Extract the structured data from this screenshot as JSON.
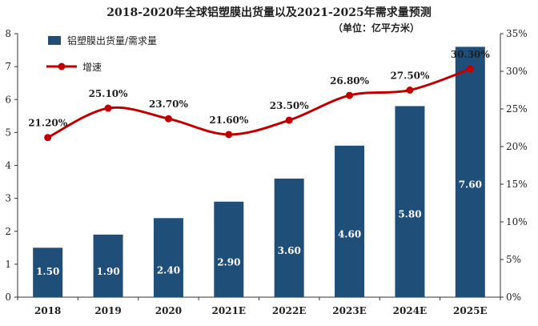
{
  "chart_data": {
    "type": "bar",
    "title": "2018-2020年全球铝塑膜出货量以及2021-2025年需求量预测",
    "subtitle": "（单位：亿平方米）",
    "categories": [
      "2018",
      "2019",
      "2020",
      "2021E",
      "2022E",
      "2023E",
      "2024E",
      "2025E"
    ],
    "series": [
      {
        "name": "铝塑膜出货量/需求量",
        "type": "bar",
        "axis": "left",
        "color": "#1f4e79",
        "values": [
          1.5,
          1.9,
          2.4,
          2.9,
          3.6,
          4.6,
          5.8,
          7.6
        ],
        "labels": [
          "1.50",
          "1.90",
          "2.40",
          "2.90",
          "3.60",
          "4.60",
          "5.80",
          "7.60"
        ]
      },
      {
        "name": "增速",
        "type": "line",
        "axis": "right",
        "color": "#c00000",
        "values": [
          21.2,
          25.1,
          23.7,
          21.6,
          23.5,
          26.8,
          27.5,
          30.3
        ],
        "labels": [
          "21.20%",
          "25.10%",
          "23.70%",
          "21.60%",
          "23.50%",
          "26.80%",
          "27.50%",
          "30.30%"
        ]
      }
    ],
    "y_left": {
      "min": 0,
      "max": 8,
      "ticks": [
        "0",
        "1",
        "2",
        "3",
        "4",
        "5",
        "6",
        "7",
        "8"
      ]
    },
    "y_right": {
      "min": 0,
      "max": 35,
      "ticks": [
        "0%",
        "5%",
        "10%",
        "15%",
        "20%",
        "25%",
        "30%",
        "35%"
      ]
    },
    "legend_position": "top-left",
    "grid": false
  }
}
